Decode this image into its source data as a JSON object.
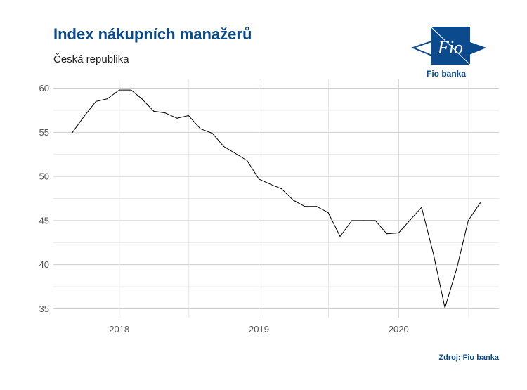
{
  "header": {
    "title": "Index nákupních manažerů",
    "subtitle": "Česká republika"
  },
  "logo": {
    "mark_text": "Fio",
    "caption": "Fio banka",
    "color": "#0b4a8c"
  },
  "source": "Zdroj: Fio banka",
  "chart_data": {
    "type": "line",
    "title": "Index nákupních manažerů",
    "subtitle": "Česká republika",
    "xlabel": "",
    "ylabel": "",
    "x_ticks": [
      "2018",
      "2019",
      "2020"
    ],
    "y_ticks": [
      35,
      40,
      45,
      50,
      55,
      60
    ],
    "ylim": [
      34,
      61
    ],
    "xlim": [
      "2017-07-13",
      "2020-09-19"
    ],
    "grid": true,
    "line_color": "#000000",
    "series": [
      {
        "points": [
          {
            "x": "2017-09-01",
            "y": 55.0
          },
          {
            "x": "2017-10-01",
            "y": 56.8
          },
          {
            "x": "2017-11-01",
            "y": 58.5
          },
          {
            "x": "2017-12-01",
            "y": 58.8
          },
          {
            "x": "2018-01-01",
            "y": 59.8
          },
          {
            "x": "2018-02-01",
            "y": 59.8
          },
          {
            "x": "2018-03-01",
            "y": 58.8
          },
          {
            "x": "2018-04-01",
            "y": 57.4
          },
          {
            "x": "2018-05-01",
            "y": 57.2
          },
          {
            "x": "2018-06-01",
            "y": 56.6
          },
          {
            "x": "2018-07-01",
            "y": 56.9
          },
          {
            "x": "2018-08-01",
            "y": 55.4
          },
          {
            "x": "2018-09-01",
            "y": 54.9
          },
          {
            "x": "2018-10-01",
            "y": 53.4
          },
          {
            "x": "2018-11-01",
            "y": 52.6
          },
          {
            "x": "2018-12-01",
            "y": 51.8
          },
          {
            "x": "2019-01-01",
            "y": 49.7
          },
          {
            "x": "2019-02-01",
            "y": 49.1
          },
          {
            "x": "2019-03-01",
            "y": 48.6
          },
          {
            "x": "2019-04-01",
            "y": 47.3
          },
          {
            "x": "2019-05-01",
            "y": 46.6
          },
          {
            "x": "2019-06-01",
            "y": 46.6
          },
          {
            "x": "2019-07-01",
            "y": 45.9
          },
          {
            "x": "2019-08-01",
            "y": 43.2
          },
          {
            "x": "2019-09-01",
            "y": 45.0
          },
          {
            "x": "2019-10-01",
            "y": 45.0
          },
          {
            "x": "2019-11-01",
            "y": 45.0
          },
          {
            "x": "2019-12-01",
            "y": 43.5
          },
          {
            "x": "2020-01-01",
            "y": 43.6
          },
          {
            "x": "2020-02-01",
            "y": 45.1
          },
          {
            "x": "2020-03-01",
            "y": 46.5
          },
          {
            "x": "2020-04-01",
            "y": 41.2
          },
          {
            "x": "2020-05-01",
            "y": 35.1
          },
          {
            "x": "2020-06-01",
            "y": 39.6
          },
          {
            "x": "2020-07-01",
            "y": 45.0
          },
          {
            "x": "2020-08-01",
            "y": 47.0
          }
        ]
      }
    ]
  }
}
